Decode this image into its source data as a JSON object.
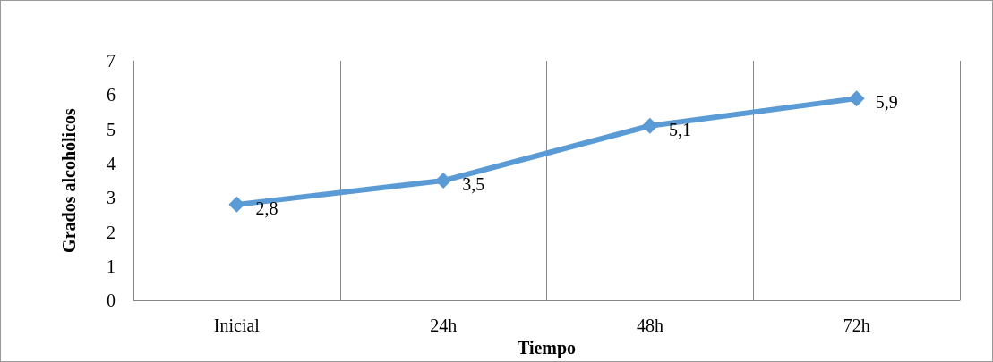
{
  "chart_data": {
    "type": "line",
    "xlabel": "Tiempo",
    "ylabel": "Grados alcohólicos",
    "categories": [
      "Inicial",
      "24h",
      "48h",
      "72h"
    ],
    "series": [
      {
        "color": "#5b9bd5",
        "values": [
          2.8,
          3.5,
          5.1,
          5.9
        ],
        "value_labels": [
          "2,8",
          "3,5",
          "5,1",
          "5,9"
        ]
      }
    ],
    "ylim": [
      0,
      7
    ],
    "yticks": [
      0,
      1,
      2,
      3,
      4,
      5,
      6,
      7
    ],
    "grid": "x",
    "marker": "diamond",
    "line_style": "solid"
  }
}
